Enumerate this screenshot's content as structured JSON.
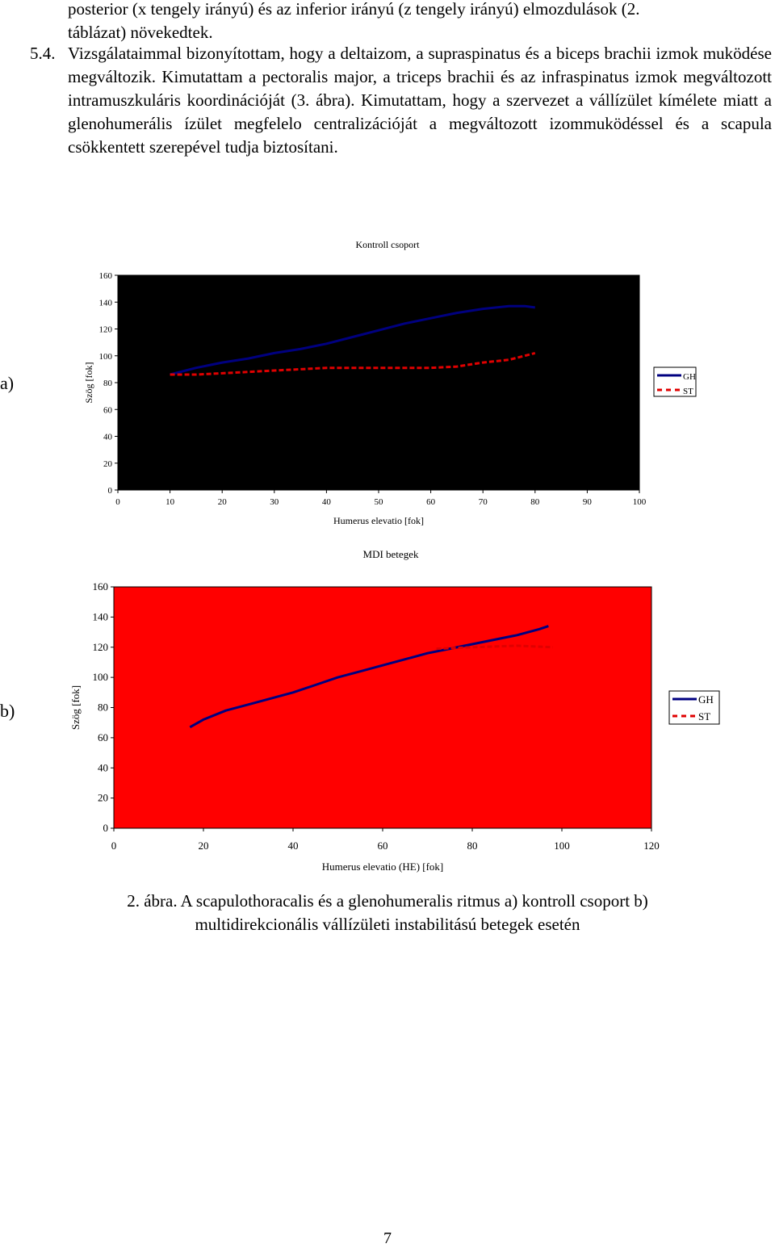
{
  "text": {
    "line1": "posterior (x tengely irányú) és az inferior irányú (z tengely irányú) elmozdulások (2.",
    "line2": "táblázat) növekedtek.",
    "item_number": "5.4.",
    "paragraph": "Vizsgálataimmal bizonyítottam, hogy a deltaizom, a supraspinatus és a biceps brachii izmok muködése megváltozik. Kimutattam a pectoralis major, a triceps brachii és az infraspinatus izmok megváltozott intramuszkuláris koordinációját (3. ábra). Kimutattam, hogy a szervezet a vállízület kímélete miatt a glenohumerális ízület megfelelo centralizációját a megváltozott izommuködéssel és a scapula csökkentett szerepével tudja biztosítani."
  },
  "figure": {
    "panel_a_letter": "a)",
    "panel_b_letter": "b)",
    "caption_line1": "2. ábra. A scapulothoracalis és a glenohumeralis ritmus a) kontroll csoport b)",
    "caption_line2": "multidirekcionális vállízületi instabilitású betegek esetén"
  },
  "chart_data": [
    {
      "type": "line",
      "title": "Kontroll csoport",
      "xlabel": "Humerus elevatio [fok]",
      "ylabel": "Szög [fok]",
      "xlim": [
        0,
        100
      ],
      "ylim": [
        0,
        160
      ],
      "xticks": [
        "0",
        "10",
        "20",
        "30",
        "40",
        "50",
        "60",
        "70",
        "80",
        "90",
        "100"
      ],
      "yticks": [
        "0",
        "20",
        "40",
        "60",
        "80",
        "100",
        "120",
        "140",
        "160"
      ],
      "plot_bg": "#000000",
      "grid": false,
      "legend_position": "right",
      "series": [
        {
          "name": "GH",
          "color": "#000080",
          "style": "solid",
          "x": [
            10,
            15,
            20,
            25,
            30,
            35,
            40,
            45,
            50,
            55,
            60,
            65,
            70,
            75,
            78,
            80
          ],
          "y": [
            86,
            91,
            95,
            98,
            102,
            105,
            109,
            114,
            119,
            124,
            128,
            132,
            135,
            137,
            137,
            136
          ]
        },
        {
          "name": "ST",
          "color": "#e00000",
          "style": "dashed",
          "x": [
            10,
            15,
            20,
            25,
            30,
            35,
            40,
            45,
            50,
            55,
            60,
            65,
            70,
            75,
            80
          ],
          "y": [
            86,
            86,
            87,
            88,
            89,
            90,
            91,
            91,
            91,
            91,
            91,
            92,
            95,
            97,
            102
          ]
        }
      ]
    },
    {
      "type": "line",
      "title": "MDI betegek",
      "xlabel": "Humerus elevatio (HE) [fok]",
      "ylabel": "Szög [fok]",
      "xlim": [
        0,
        120
      ],
      "ylim": [
        0,
        160
      ],
      "xticks": [
        "0",
        "20",
        "40",
        "60",
        "80",
        "100",
        "120"
      ],
      "yticks": [
        "0",
        "20",
        "40",
        "60",
        "80",
        "100",
        "120",
        "140",
        "160"
      ],
      "plot_bg": "#ff0000",
      "grid": false,
      "legend_position": "right",
      "series": [
        {
          "name": "GH",
          "color": "#000080",
          "style": "solid",
          "x": [
            17,
            20,
            25,
            30,
            35,
            40,
            45,
            50,
            55,
            60,
            65,
            70,
            75,
            80,
            85,
            90,
            95,
            97
          ],
          "y": [
            67,
            72,
            78,
            82,
            86,
            90,
            95,
            100,
            104,
            108,
            112,
            116,
            119,
            122,
            125,
            128,
            132,
            134
          ]
        },
        {
          "name": "ST",
          "color": "#e00000",
          "style": "dashed",
          "x": [
            72,
            80,
            90,
            98
          ],
          "y": [
            119,
            120,
            121,
            120
          ]
        }
      ]
    }
  ]
}
